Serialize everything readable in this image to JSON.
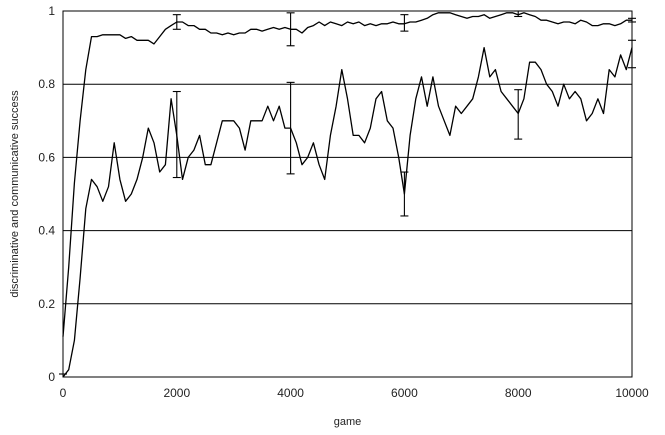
{
  "chart_data": {
    "type": "line",
    "title": "",
    "xlabel": "game",
    "ylabel": "discriminative and communicative success",
    "xlim": [
      0,
      10000
    ],
    "ylim": [
      0,
      1
    ],
    "x_ticks": [
      0,
      2000,
      4000,
      6000,
      8000,
      10000
    ],
    "x_tick_labels": [
      "0",
      "2000",
      "4000",
      "6000",
      "8000",
      "10000"
    ],
    "y_ticks": [
      0,
      0.2,
      0.4,
      0.6,
      0.8,
      1
    ],
    "y_tick_labels": [
      "0",
      "0.2",
      "0.4",
      "0.6",
      "0.8",
      "1"
    ],
    "grid": "horizontal",
    "legend": "none",
    "colors": {
      "line": "#000000",
      "grid": "#000000",
      "background": "#ffffff"
    },
    "series": [
      {
        "x": [
          0,
          100,
          200,
          300,
          400,
          500,
          600,
          700,
          800,
          900,
          1000,
          1100,
          1200,
          1300,
          1400,
          1500,
          1600,
          1700,
          1800,
          1900,
          2000,
          2100,
          2200,
          2300,
          2400,
          2500,
          2600,
          2700,
          2800,
          2900,
          3000,
          3100,
          3200,
          3300,
          3400,
          3500,
          3600,
          3700,
          3800,
          3900,
          4000,
          4100,
          4200,
          4300,
          4400,
          4500,
          4600,
          4700,
          4800,
          4900,
          5000,
          5100,
          5200,
          5300,
          5400,
          5500,
          5600,
          5700,
          5800,
          5900,
          6000,
          6100,
          6200,
          6300,
          6400,
          6500,
          6600,
          6700,
          6800,
          6900,
          7000,
          7100,
          7200,
          7300,
          7400,
          7500,
          7600,
          7700,
          7800,
          7900,
          8000,
          8100,
          8200,
          8300,
          8400,
          8500,
          8600,
          8700,
          8800,
          8900,
          9000,
          9100,
          9200,
          9300,
          9400,
          9500,
          9600,
          9700,
          9800,
          9900,
          10000
        ],
        "y": [
          0.11,
          0.3,
          0.53,
          0.7,
          0.84,
          0.93,
          0.93,
          0.935,
          0.935,
          0.935,
          0.935,
          0.925,
          0.93,
          0.92,
          0.92,
          0.92,
          0.91,
          0.93,
          0.95,
          0.96,
          0.97,
          0.97,
          0.96,
          0.96,
          0.95,
          0.95,
          0.94,
          0.94,
          0.935,
          0.94,
          0.935,
          0.94,
          0.94,
          0.95,
          0.95,
          0.945,
          0.95,
          0.955,
          0.95,
          0.955,
          0.95,
          0.95,
          0.94,
          0.955,
          0.96,
          0.97,
          0.96,
          0.97,
          0.965,
          0.96,
          0.97,
          0.965,
          0.97,
          0.96,
          0.965,
          0.96,
          0.965,
          0.965,
          0.97,
          0.965,
          0.965,
          0.97,
          0.97,
          0.975,
          0.98,
          0.99,
          0.995,
          0.995,
          0.995,
          0.99,
          0.985,
          0.98,
          0.985,
          0.985,
          0.99,
          0.98,
          0.985,
          0.99,
          0.995,
          0.995,
          0.99,
          0.995,
          0.99,
          0.985,
          0.975,
          0.975,
          0.97,
          0.965,
          0.97,
          0.97,
          0.965,
          0.975,
          0.97,
          0.96,
          0.96,
          0.965,
          0.965,
          0.96,
          0.965,
          0.975,
          0.975
        ],
        "error_bars": [
          {
            "x": 2000,
            "low": 0.95,
            "high": 0.99
          },
          {
            "x": 4000,
            "low": 0.905,
            "high": 0.995
          },
          {
            "x": 6000,
            "low": 0.945,
            "high": 0.99
          },
          {
            "x": 8000,
            "low": 0.985,
            "high": 1.0
          },
          {
            "x": 10000,
            "low": 0.97,
            "high": 0.98
          }
        ]
      },
      {
        "x": [
          0,
          100,
          200,
          300,
          400,
          500,
          600,
          700,
          800,
          900,
          1000,
          1100,
          1200,
          1300,
          1400,
          1500,
          1600,
          1700,
          1800,
          1900,
          2000,
          2100,
          2200,
          2300,
          2400,
          2500,
          2600,
          2700,
          2800,
          2900,
          3000,
          3100,
          3200,
          3300,
          3400,
          3500,
          3600,
          3700,
          3800,
          3900,
          4000,
          4100,
          4200,
          4300,
          4400,
          4500,
          4600,
          4700,
          4800,
          4900,
          5000,
          5100,
          5200,
          5300,
          5400,
          5500,
          5600,
          5700,
          5800,
          5900,
          6000,
          6100,
          6200,
          6300,
          6400,
          6500,
          6600,
          6700,
          6800,
          6900,
          7000,
          7100,
          7200,
          7300,
          7400,
          7500,
          7600,
          7700,
          7800,
          7900,
          8000,
          8100,
          8200,
          8300,
          8400,
          8500,
          8600,
          8700,
          8800,
          8900,
          9000,
          9100,
          9200,
          9300,
          9400,
          9500,
          9600,
          9700,
          9800,
          9900,
          10000
        ],
        "y": [
          0.0,
          0.02,
          0.1,
          0.27,
          0.46,
          0.54,
          0.52,
          0.48,
          0.52,
          0.64,
          0.54,
          0.48,
          0.5,
          0.54,
          0.6,
          0.68,
          0.64,
          0.56,
          0.58,
          0.76,
          0.66,
          0.54,
          0.6,
          0.62,
          0.66,
          0.58,
          0.58,
          0.64,
          0.7,
          0.7,
          0.7,
          0.68,
          0.62,
          0.7,
          0.7,
          0.7,
          0.74,
          0.7,
          0.74,
          0.68,
          0.68,
          0.64,
          0.58,
          0.6,
          0.64,
          0.58,
          0.54,
          0.66,
          0.74,
          0.84,
          0.76,
          0.66,
          0.66,
          0.64,
          0.68,
          0.76,
          0.78,
          0.7,
          0.68,
          0.6,
          0.5,
          0.66,
          0.76,
          0.82,
          0.74,
          0.82,
          0.74,
          0.7,
          0.66,
          0.74,
          0.72,
          0.74,
          0.76,
          0.82,
          0.9,
          0.82,
          0.84,
          0.78,
          0.76,
          0.74,
          0.72,
          0.76,
          0.86,
          0.86,
          0.84,
          0.8,
          0.78,
          0.74,
          0.8,
          0.76,
          0.78,
          0.76,
          0.7,
          0.72,
          0.76,
          0.72,
          0.84,
          0.82,
          0.88,
          0.84,
          0.9
        ],
        "error_bars": [
          {
            "x": 2000,
            "low": 0.545,
            "high": 0.78
          },
          {
            "x": 4000,
            "low": 0.555,
            "high": 0.805
          },
          {
            "x": 6000,
            "low": 0.44,
            "high": 0.56
          },
          {
            "x": 8000,
            "low": 0.65,
            "high": 0.785
          },
          {
            "x": 10000,
            "low": 0.845,
            "high": 0.92
          }
        ]
      }
    ]
  }
}
